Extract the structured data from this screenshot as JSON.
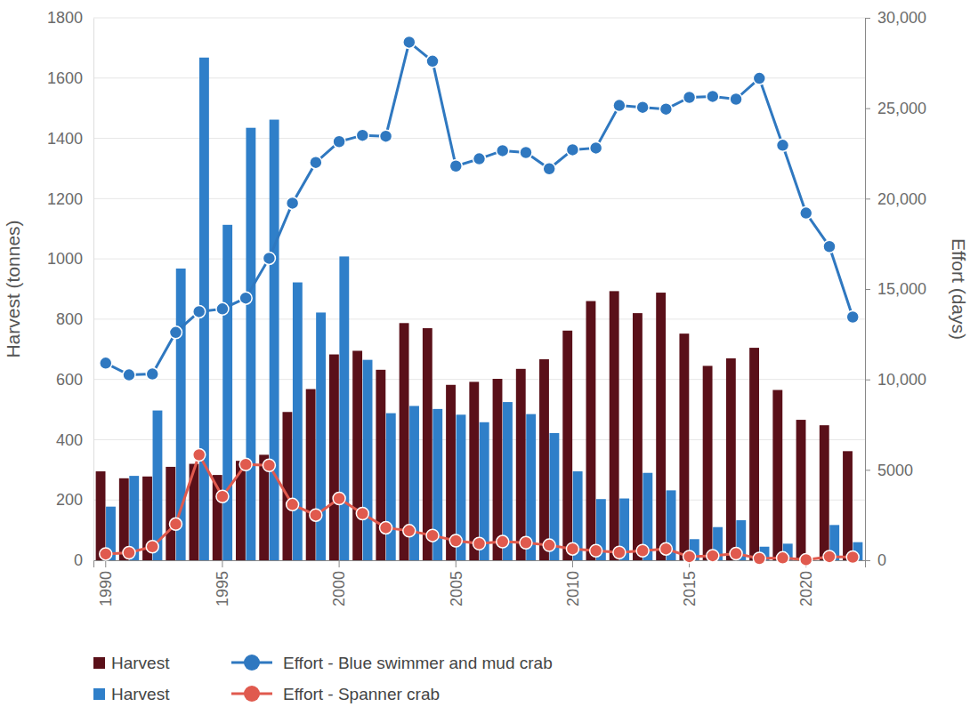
{
  "chart_data": {
    "type": "bar",
    "y_label": "Harvest (tonnes)",
    "y2_label": "Effort (days)",
    "categories": [
      "1990",
      null,
      null,
      null,
      null,
      "1995",
      null,
      null,
      null,
      null,
      "2000",
      null,
      null,
      null,
      null,
      "2005",
      null,
      null,
      null,
      null,
      "2010",
      null,
      null,
      null,
      null,
      "2015",
      null,
      null,
      null,
      null,
      "2020",
      null,
      null
    ],
    "ylim": [
      0,
      1800
    ],
    "yticks": [
      0,
      200,
      400,
      600,
      800,
      1000,
      1200,
      1400,
      1600,
      1800
    ],
    "y2lim": [
      0,
      30000
    ],
    "y2ticks": [
      0,
      5000,
      {
        "value": 10000,
        "label": "10,000"
      },
      {
        "value": 15000,
        "label": "15,000"
      },
      {
        "value": 20000,
        "label": "20,000"
      },
      {
        "value": 25000,
        "label": "25,000"
      },
      {
        "value": 30000,
        "label": "30,000"
      }
    ],
    "grid": true,
    "legend": "bottom",
    "series": [
      {
        "name": "Harvest",
        "type": "bar",
        "color": "#5a1019",
        "values": [
          295,
          272,
          278,
          310,
          320,
          283,
          330,
          350,
          492,
          568,
          683,
          695,
          632,
          787,
          770,
          582,
          592,
          602,
          635,
          667,
          762,
          860,
          893,
          820,
          888,
          752,
          645,
          670,
          705,
          565,
          466,
          448,
          362
        ]
      },
      {
        "name": "Harvest",
        "type": "bar",
        "color": "#2f7fc9",
        "values": [
          178,
          280,
          497,
          968,
          1668,
          1113,
          1435,
          1462,
          922,
          822,
          1008,
          665,
          488,
          512,
          502,
          483,
          458,
          525,
          485,
          422,
          295,
          203,
          205,
          290,
          232,
          70,
          110,
          133,
          45,
          55,
          0,
          117,
          60
        ]
      },
      {
        "name": "Effort - Blue swimmer and mud crab",
        "type": "line",
        "axis": "y2",
        "color": "#2f78c0",
        "marker": "circle",
        "line_style": "solid",
        "values": [
          10900,
          10250,
          10300,
          12600,
          13750,
          13900,
          14500,
          16700,
          19750,
          22000,
          23150,
          23500,
          23450,
          28650,
          27600,
          21800,
          22200,
          22650,
          22550,
          21650,
          22700,
          22800,
          25150,
          25050,
          24950,
          25600,
          25650,
          25500,
          26650,
          22950,
          19200,
          17350,
          13450
        ]
      },
      {
        "name": "Effort - Spanner crab",
        "type": "line",
        "axis": "y2",
        "color": "#e05a4e",
        "marker": "circle",
        "line_style": "solid",
        "values": [
          350,
          420,
          750,
          2000,
          5830,
          3530,
          5300,
          5250,
          3080,
          2500,
          3420,
          2580,
          1800,
          1630,
          1370,
          1080,
          920,
          1030,
          970,
          830,
          630,
          530,
          430,
          530,
          630,
          200,
          250,
          370,
          100,
          130,
          30,
          200,
          170
        ]
      }
    ]
  }
}
